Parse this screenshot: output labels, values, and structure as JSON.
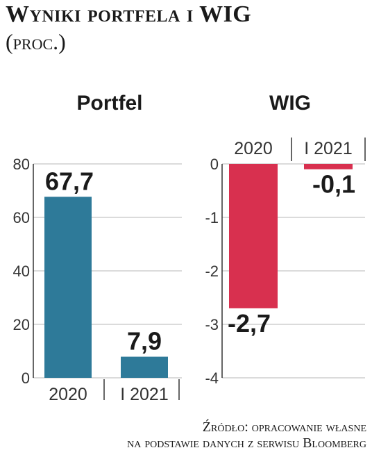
{
  "header": {
    "title": "Wyniki portfela i WIG",
    "subtitle": "(proc.)"
  },
  "colors": {
    "portfel": "#2e7a99",
    "wig": "#d8304f",
    "axis": "#333333",
    "grid": "#cfcfcf"
  },
  "chart_data": [
    {
      "type": "bar",
      "title": "Portfel",
      "categories": [
        "2020",
        "I 2021"
      ],
      "values": [
        67.7,
        7.9
      ],
      "value_labels": [
        "67,7",
        "7,9"
      ],
      "ylim": [
        0,
        80
      ],
      "yticks": [
        0,
        20,
        40,
        60,
        80
      ],
      "ytick_labels": [
        "0",
        "20",
        "40",
        "60",
        "80"
      ],
      "grid": true,
      "category_position": "bottom",
      "xlabel": "",
      "ylabel": ""
    },
    {
      "type": "bar",
      "title": "WIG",
      "categories": [
        "2020",
        "I 2021"
      ],
      "values": [
        -2.7,
        -0.1
      ],
      "value_labels": [
        "-2,7",
        "-0,1"
      ],
      "ylim": [
        -4,
        0
      ],
      "yticks": [
        0,
        -1,
        -2,
        -3,
        -4
      ],
      "ytick_labels": [
        "0",
        "-1",
        "-2",
        "-3",
        "-4"
      ],
      "grid": true,
      "category_position": "top",
      "xlabel": "",
      "ylabel": ""
    }
  ],
  "footer": {
    "source_line1": "Źródło: opracowanie własne",
    "source_line2": "na podstawie danych z serwisu Bloomberg"
  }
}
